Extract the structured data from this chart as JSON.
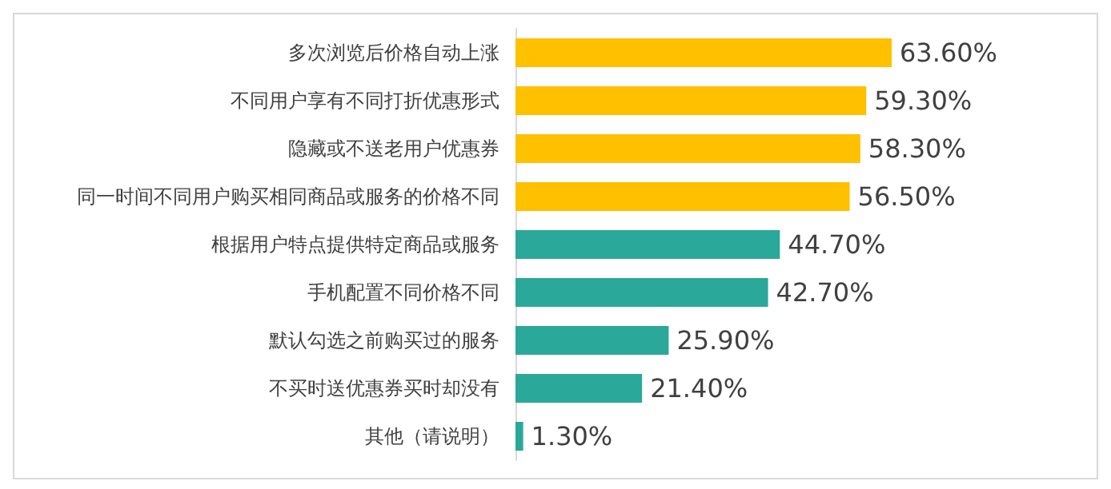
{
  "chart_data": {
    "type": "bar",
    "orientation": "horizontal",
    "categories": [
      "多次浏览后价格自动上涨",
      "不同用户享有不同打折优惠形式",
      "隐藏或不送老用户优惠券",
      "同一时间不同用户购买相同商品或服务的价格不同",
      "根据用户特点提供特定商品或服务",
      "手机配置不同价格不同",
      "默认勾选之前购买过的服务",
      "不买时送优惠券买时却没有",
      "其他（请说明）"
    ],
    "values": [
      63.6,
      59.3,
      58.3,
      56.5,
      44.7,
      42.7,
      25.9,
      21.4,
      1.3
    ],
    "colors": [
      "#ffc000",
      "#ffc000",
      "#ffc000",
      "#ffc000",
      "#2aa899",
      "#2aa899",
      "#2aa899",
      "#2aa899",
      "#2aa899"
    ],
    "value_labels": [
      "63.60%",
      "59.30%",
      "58.30%",
      "56.50%",
      "44.70%",
      "42.70%",
      "25.90%",
      "21.40%",
      "1.30%"
    ]
  }
}
